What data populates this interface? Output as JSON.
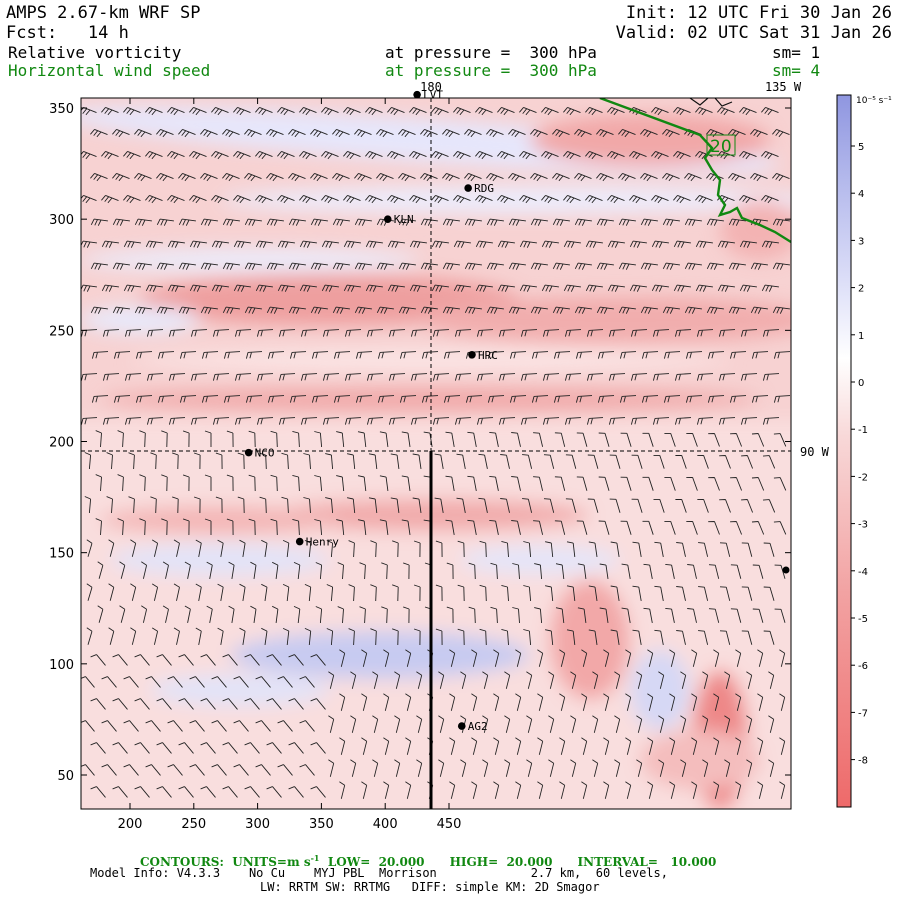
{
  "header": {
    "model": "AMPS 2.67-km WRF SP",
    "init": "Init: 12 UTC Fri 30 Jan 26",
    "fcst": "Fcst:   14 h",
    "valid": "Valid: 02 UTC Sat 31 Jan 26",
    "field1_name": "Relative vorticity",
    "field1_level": "at pressure =  300 hPa",
    "field1_sm": "sm= 1",
    "field2_name": "Horizontal wind speed",
    "field2_level": "at pressure =  300 hPa",
    "field2_sm": "sm= 4"
  },
  "map": {
    "x_ticks": [
      "200",
      "250",
      "300",
      "350",
      "400",
      "450"
    ],
    "y_ticks": [
      "350",
      "300",
      "250",
      "200",
      "150",
      "100",
      "50"
    ],
    "meridian_180": "180",
    "meridian_135w": "135 W",
    "meridian_90w": "90 W",
    "contour_label": "20",
    "stations": [
      {
        "name": "NCO",
        "x": 293,
        "y": 195
      },
      {
        "name": "Henry",
        "x": 333,
        "y": 155
      },
      {
        "name": "KLN",
        "x": 402,
        "y": 300
      },
      {
        "name": "HRC",
        "x": 468,
        "y": 239
      },
      {
        "name": "RDG",
        "x": 465,
        "y": 314
      },
      {
        "name": "AG2",
        "x": 460,
        "y": 72
      },
      {
        "name": "LVT",
        "x": 425,
        "y": 356
      }
    ]
  },
  "colorbar": {
    "units": "10⁻⁵ s⁻¹",
    "labels": [
      "5",
      "4",
      "3",
      "2",
      "1",
      "0",
      "-1",
      "-2",
      "-3",
      "-4",
      "-5",
      "-6",
      "-7",
      "-8"
    ]
  },
  "footer": {
    "contours": "CONTOURS:  UNITS=m s",
    "contours_sup": "-1",
    "contours_rest": "  LOW=  20.000      HIGH=  20.000      INTERVAL=   10.000",
    "model_info": "Model Info: V4.3.3    No Cu    MYJ PBL  Morrison             2.7 km,  60 levels,",
    "model_info2": "LW: RRTM SW: RRTMG   DIFF: simple KM: 2D Smagor"
  }
}
